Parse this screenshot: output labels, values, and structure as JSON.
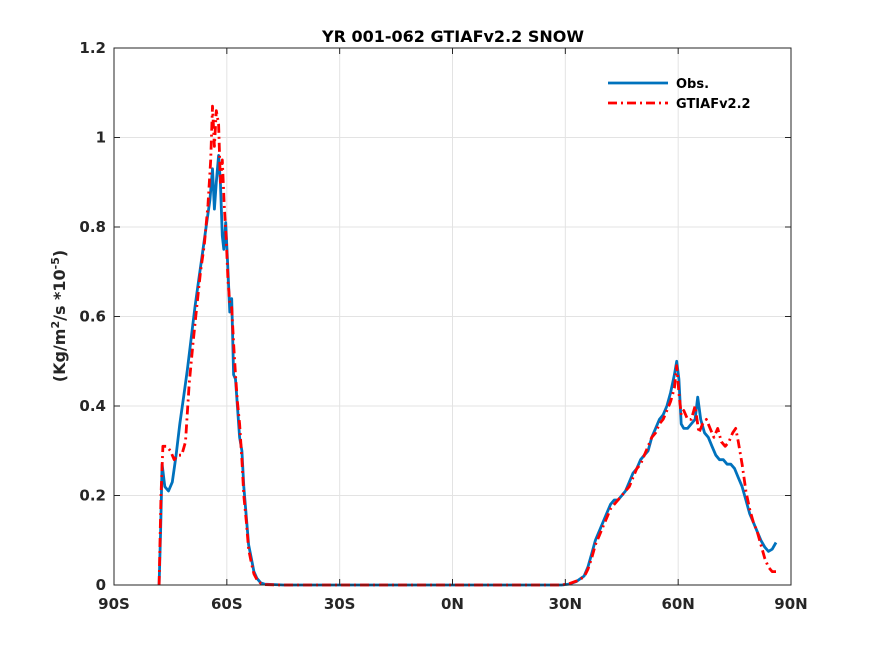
{
  "chart_data": {
    "type": "line",
    "title": "YR 001-062 GTIAFv2.2 SNOW",
    "ylabel": "(Kg/m2/s *10-5)",
    "ylabel_parts": {
      "a": "(Kg/m",
      "sup1": "2",
      "b": "/s *10",
      "sup2": "-5",
      "c": ")"
    },
    "xlim": [
      -90,
      90
    ],
    "ylim": [
      0,
      1.2
    ],
    "xticks": [
      -90,
      -60,
      -30,
      0,
      30,
      60,
      90
    ],
    "xtick_labels": [
      "90S",
      "60S",
      "30S",
      "0N",
      "30N",
      "60N",
      "90N"
    ],
    "yticks": [
      0,
      0.2,
      0.4,
      0.6,
      0.8,
      1.0,
      1.2
    ],
    "ytick_labels": [
      "0",
      "0.2",
      "0.4",
      "0.6",
      "0.8",
      "1",
      "1.2"
    ],
    "grid": true,
    "legend_position": "top-right",
    "series": [
      {
        "name": "Obs.",
        "color": "#0072BD",
        "style": "solid",
        "points": [
          [
            -78,
            0.0
          ],
          [
            -77.6,
            0.12
          ],
          [
            -77.2,
            0.27
          ],
          [
            -76.5,
            0.22
          ],
          [
            -75.5,
            0.21
          ],
          [
            -74.5,
            0.23
          ],
          [
            -73.5,
            0.29
          ],
          [
            -72.5,
            0.36
          ],
          [
            -71.5,
            0.42
          ],
          [
            -70.5,
            0.48
          ],
          [
            -69.5,
            0.55
          ],
          [
            -68.5,
            0.62
          ],
          [
            -67.5,
            0.68
          ],
          [
            -66.5,
            0.74
          ],
          [
            -65.5,
            0.8
          ],
          [
            -64.5,
            0.86
          ],
          [
            -63.8,
            0.93
          ],
          [
            -63.3,
            0.84
          ],
          [
            -62.8,
            0.9
          ],
          [
            -62.2,
            0.96
          ],
          [
            -61.7,
            0.9
          ],
          [
            -61.2,
            0.78
          ],
          [
            -60.8,
            0.75
          ],
          [
            -60.3,
            0.81
          ],
          [
            -59.8,
            0.72
          ],
          [
            -59.2,
            0.61
          ],
          [
            -58.7,
            0.64
          ],
          [
            -58.2,
            0.47
          ],
          [
            -57.7,
            0.46
          ],
          [
            -57.2,
            0.4
          ],
          [
            -56.6,
            0.33
          ],
          [
            -56.0,
            0.3
          ],
          [
            -55.5,
            0.22
          ],
          [
            -54.8,
            0.15
          ],
          [
            -54.2,
            0.09
          ],
          [
            -53.5,
            0.06
          ],
          [
            -52.8,
            0.03
          ],
          [
            -52.0,
            0.015
          ],
          [
            -51.0,
            0.005
          ],
          [
            -50.0,
            0.002
          ],
          [
            -45,
            0.0
          ],
          [
            -30,
            0.0
          ],
          [
            0,
            0.0
          ],
          [
            20,
            0.0
          ],
          [
            29,
            0.0
          ],
          [
            31,
            0.002
          ],
          [
            33,
            0.008
          ],
          [
            35,
            0.02
          ],
          [
            36,
            0.04
          ],
          [
            37,
            0.07
          ],
          [
            38,
            0.1
          ],
          [
            39,
            0.12
          ],
          [
            40,
            0.14
          ],
          [
            41,
            0.16
          ],
          [
            42,
            0.18
          ],
          [
            43,
            0.19
          ],
          [
            44,
            0.19
          ],
          [
            45,
            0.2
          ],
          [
            46,
            0.21
          ],
          [
            47,
            0.23
          ],
          [
            48,
            0.25
          ],
          [
            49,
            0.26
          ],
          [
            50,
            0.28
          ],
          [
            51,
            0.29
          ],
          [
            52,
            0.3
          ],
          [
            53,
            0.33
          ],
          [
            54,
            0.35
          ],
          [
            55,
            0.37
          ],
          [
            56,
            0.38
          ],
          [
            57,
            0.4
          ],
          [
            58,
            0.43
          ],
          [
            59,
            0.47
          ],
          [
            59.6,
            0.5
          ],
          [
            60.2,
            0.46
          ],
          [
            60.8,
            0.36
          ],
          [
            61.5,
            0.35
          ],
          [
            62.5,
            0.35
          ],
          [
            63.5,
            0.36
          ],
          [
            64.5,
            0.37
          ],
          [
            65.2,
            0.42
          ],
          [
            66,
            0.37
          ],
          [
            67,
            0.34
          ],
          [
            68,
            0.33
          ],
          [
            69,
            0.31
          ],
          [
            70,
            0.29
          ],
          [
            71,
            0.28
          ],
          [
            72,
            0.28
          ],
          [
            73,
            0.27
          ],
          [
            74,
            0.27
          ],
          [
            75,
            0.26
          ],
          [
            76,
            0.24
          ],
          [
            77,
            0.22
          ],
          [
            78,
            0.19
          ],
          [
            79,
            0.16
          ],
          [
            80,
            0.14
          ],
          [
            81,
            0.12
          ],
          [
            82,
            0.1
          ],
          [
            83,
            0.085
          ],
          [
            84,
            0.075
          ],
          [
            85,
            0.08
          ],
          [
            86,
            0.095
          ]
        ]
      },
      {
        "name": "GTIAFv2.2",
        "color": "#FF0000",
        "style": "dashdot",
        "points": [
          [
            -78,
            0.0
          ],
          [
            -77.5,
            0.2
          ],
          [
            -77.0,
            0.31
          ],
          [
            -76.0,
            0.31
          ],
          [
            -75.0,
            0.3
          ],
          [
            -74.0,
            0.28
          ],
          [
            -73.0,
            0.29
          ],
          [
            -72.0,
            0.29
          ],
          [
            -71.0,
            0.32
          ],
          [
            -70.0,
            0.45
          ],
          [
            -69.0,
            0.54
          ],
          [
            -68.0,
            0.62
          ],
          [
            -67.0,
            0.7
          ],
          [
            -66.0,
            0.76
          ],
          [
            -65.0,
            0.85
          ],
          [
            -64.3,
            0.95
          ],
          [
            -63.8,
            1.07
          ],
          [
            -63.3,
            0.98
          ],
          [
            -62.8,
            1.06
          ],
          [
            -62.2,
            1.03
          ],
          [
            -61.7,
            0.9
          ],
          [
            -61.2,
            0.95
          ],
          [
            -60.7,
            0.85
          ],
          [
            -60.2,
            0.78
          ],
          [
            -59.7,
            0.68
          ],
          [
            -59.2,
            0.63
          ],
          [
            -58.7,
            0.62
          ],
          [
            -58.2,
            0.54
          ],
          [
            -57.7,
            0.47
          ],
          [
            -57.2,
            0.41
          ],
          [
            -56.6,
            0.36
          ],
          [
            -56.0,
            0.28
          ],
          [
            -55.5,
            0.2
          ],
          [
            -54.8,
            0.14
          ],
          [
            -54.2,
            0.08
          ],
          [
            -53.5,
            0.05
          ],
          [
            -52.8,
            0.025
          ],
          [
            -52.0,
            0.012
          ],
          [
            -51.0,
            0.004
          ],
          [
            -50.0,
            0.001
          ],
          [
            -45,
            0.0
          ],
          [
            -30,
            0.0
          ],
          [
            0,
            0.0
          ],
          [
            20,
            0.0
          ],
          [
            29,
            0.0
          ],
          [
            31,
            0.003
          ],
          [
            33,
            0.009
          ],
          [
            35,
            0.018
          ],
          [
            36,
            0.035
          ],
          [
            37,
            0.06
          ],
          [
            38,
            0.09
          ],
          [
            39,
            0.11
          ],
          [
            40,
            0.13
          ],
          [
            41,
            0.15
          ],
          [
            42,
            0.17
          ],
          [
            43,
            0.18
          ],
          [
            44,
            0.19
          ],
          [
            45,
            0.2
          ],
          [
            46,
            0.21
          ],
          [
            47,
            0.22
          ],
          [
            48,
            0.24
          ],
          [
            49,
            0.26
          ],
          [
            50,
            0.27
          ],
          [
            51,
            0.29
          ],
          [
            52,
            0.31
          ],
          [
            53,
            0.33
          ],
          [
            54,
            0.34
          ],
          [
            55,
            0.36
          ],
          [
            56,
            0.37
          ],
          [
            57,
            0.39
          ],
          [
            58,
            0.41
          ],
          [
            59,
            0.44
          ],
          [
            59.6,
            0.49
          ],
          [
            60.2,
            0.43
          ],
          [
            60.8,
            0.38
          ],
          [
            61.5,
            0.39
          ],
          [
            62.5,
            0.37
          ],
          [
            63.5,
            0.37
          ],
          [
            64.5,
            0.4
          ],
          [
            65.5,
            0.34
          ],
          [
            66.5,
            0.36
          ],
          [
            67.5,
            0.37
          ],
          [
            68.5,
            0.35
          ],
          [
            69.5,
            0.33
          ],
          [
            70.5,
            0.35
          ],
          [
            71.5,
            0.32
          ],
          [
            72.5,
            0.31
          ],
          [
            73.5,
            0.32
          ],
          [
            74.5,
            0.34
          ],
          [
            75.3,
            0.35
          ],
          [
            76,
            0.32
          ],
          [
            77,
            0.27
          ],
          [
            78,
            0.21
          ],
          [
            79,
            0.17
          ],
          [
            80,
            0.14
          ],
          [
            81,
            0.12
          ],
          [
            82,
            0.09
          ],
          [
            83,
            0.06
          ],
          [
            84,
            0.04
          ],
          [
            85,
            0.03
          ],
          [
            86,
            0.03
          ]
        ]
      }
    ]
  }
}
